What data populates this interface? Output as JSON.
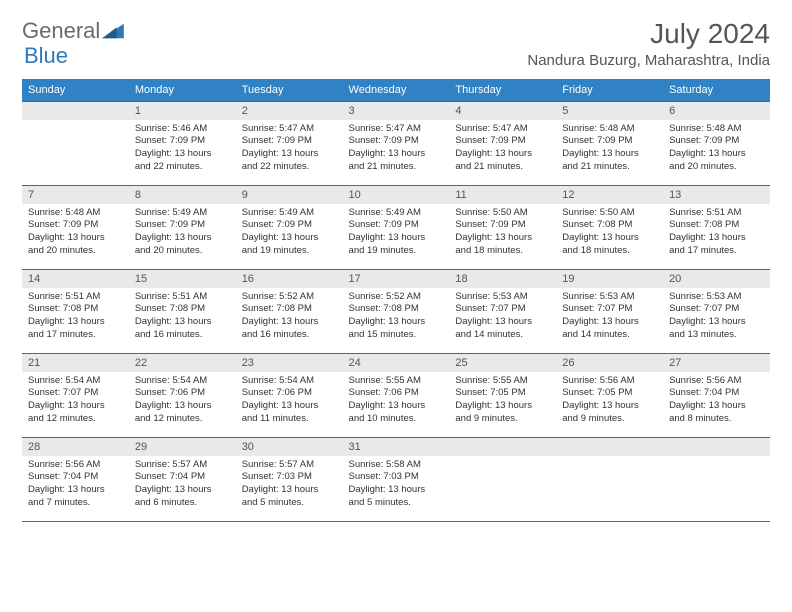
{
  "logo": {
    "text1": "General",
    "text2": "Blue"
  },
  "title": "July 2024",
  "location": "Nandura Buzurg, Maharashtra, India",
  "weekday_labels": [
    "Sunday",
    "Monday",
    "Tuesday",
    "Wednesday",
    "Thursday",
    "Friday",
    "Saturday"
  ],
  "colors": {
    "header_bg": "#3082c4",
    "header_text": "#ffffff",
    "daynum_bg": "#e9e9e9",
    "row_border": "#2f6ea8",
    "logo_gray": "#6b6b6b",
    "logo_blue": "#2f78b8",
    "title_color": "#555555",
    "body_bg": "#ffffff"
  },
  "typography": {
    "month_title_pt": 28,
    "location_pt": 15,
    "weekday_pt": 11,
    "daynum_pt": 11,
    "cell_pt": 9.5,
    "logo_pt": 22
  },
  "layout": {
    "cols": 7,
    "rows": 5,
    "first_weekday_index": 1
  },
  "days": [
    {
      "n": 1,
      "sunrise": "5:46 AM",
      "sunset": "7:09 PM",
      "daylight": "13 hours and 22 minutes."
    },
    {
      "n": 2,
      "sunrise": "5:47 AM",
      "sunset": "7:09 PM",
      "daylight": "13 hours and 22 minutes."
    },
    {
      "n": 3,
      "sunrise": "5:47 AM",
      "sunset": "7:09 PM",
      "daylight": "13 hours and 21 minutes."
    },
    {
      "n": 4,
      "sunrise": "5:47 AM",
      "sunset": "7:09 PM",
      "daylight": "13 hours and 21 minutes."
    },
    {
      "n": 5,
      "sunrise": "5:48 AM",
      "sunset": "7:09 PM",
      "daylight": "13 hours and 21 minutes."
    },
    {
      "n": 6,
      "sunrise": "5:48 AM",
      "sunset": "7:09 PM",
      "daylight": "13 hours and 20 minutes."
    },
    {
      "n": 7,
      "sunrise": "5:48 AM",
      "sunset": "7:09 PM",
      "daylight": "13 hours and 20 minutes."
    },
    {
      "n": 8,
      "sunrise": "5:49 AM",
      "sunset": "7:09 PM",
      "daylight": "13 hours and 20 minutes."
    },
    {
      "n": 9,
      "sunrise": "5:49 AM",
      "sunset": "7:09 PM",
      "daylight": "13 hours and 19 minutes."
    },
    {
      "n": 10,
      "sunrise": "5:49 AM",
      "sunset": "7:09 PM",
      "daylight": "13 hours and 19 minutes."
    },
    {
      "n": 11,
      "sunrise": "5:50 AM",
      "sunset": "7:09 PM",
      "daylight": "13 hours and 18 minutes."
    },
    {
      "n": 12,
      "sunrise": "5:50 AM",
      "sunset": "7:08 PM",
      "daylight": "13 hours and 18 minutes."
    },
    {
      "n": 13,
      "sunrise": "5:51 AM",
      "sunset": "7:08 PM",
      "daylight": "13 hours and 17 minutes."
    },
    {
      "n": 14,
      "sunrise": "5:51 AM",
      "sunset": "7:08 PM",
      "daylight": "13 hours and 17 minutes."
    },
    {
      "n": 15,
      "sunrise": "5:51 AM",
      "sunset": "7:08 PM",
      "daylight": "13 hours and 16 minutes."
    },
    {
      "n": 16,
      "sunrise": "5:52 AM",
      "sunset": "7:08 PM",
      "daylight": "13 hours and 16 minutes."
    },
    {
      "n": 17,
      "sunrise": "5:52 AM",
      "sunset": "7:08 PM",
      "daylight": "13 hours and 15 minutes."
    },
    {
      "n": 18,
      "sunrise": "5:53 AM",
      "sunset": "7:07 PM",
      "daylight": "13 hours and 14 minutes."
    },
    {
      "n": 19,
      "sunrise": "5:53 AM",
      "sunset": "7:07 PM",
      "daylight": "13 hours and 14 minutes."
    },
    {
      "n": 20,
      "sunrise": "5:53 AM",
      "sunset": "7:07 PM",
      "daylight": "13 hours and 13 minutes."
    },
    {
      "n": 21,
      "sunrise": "5:54 AM",
      "sunset": "7:07 PM",
      "daylight": "13 hours and 12 minutes."
    },
    {
      "n": 22,
      "sunrise": "5:54 AM",
      "sunset": "7:06 PM",
      "daylight": "13 hours and 12 minutes."
    },
    {
      "n": 23,
      "sunrise": "5:54 AM",
      "sunset": "7:06 PM",
      "daylight": "13 hours and 11 minutes."
    },
    {
      "n": 24,
      "sunrise": "5:55 AM",
      "sunset": "7:06 PM",
      "daylight": "13 hours and 10 minutes."
    },
    {
      "n": 25,
      "sunrise": "5:55 AM",
      "sunset": "7:05 PM",
      "daylight": "13 hours and 9 minutes."
    },
    {
      "n": 26,
      "sunrise": "5:56 AM",
      "sunset": "7:05 PM",
      "daylight": "13 hours and 9 minutes."
    },
    {
      "n": 27,
      "sunrise": "5:56 AM",
      "sunset": "7:04 PM",
      "daylight": "13 hours and 8 minutes."
    },
    {
      "n": 28,
      "sunrise": "5:56 AM",
      "sunset": "7:04 PM",
      "daylight": "13 hours and 7 minutes."
    },
    {
      "n": 29,
      "sunrise": "5:57 AM",
      "sunset": "7:04 PM",
      "daylight": "13 hours and 6 minutes."
    },
    {
      "n": 30,
      "sunrise": "5:57 AM",
      "sunset": "7:03 PM",
      "daylight": "13 hours and 5 minutes."
    },
    {
      "n": 31,
      "sunrise": "5:58 AM",
      "sunset": "7:03 PM",
      "daylight": "13 hours and 5 minutes."
    }
  ],
  "labels": {
    "sunrise": "Sunrise:",
    "sunset": "Sunset:",
    "daylight": "Daylight:"
  }
}
